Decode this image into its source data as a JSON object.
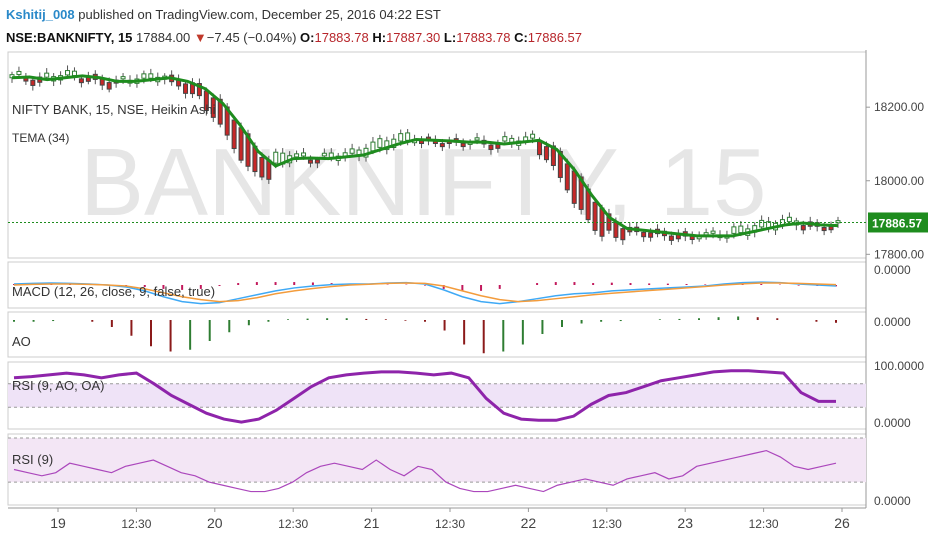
{
  "header": {
    "author": "Kshitij_008",
    "published_text": "published on TradingView.com, December 25, 2016 04:22 EST",
    "symbol": "NSE:BANKNIFTY, 15",
    "last_price": "17884.00",
    "change_arrow": "▼",
    "change": "−7.45 (−0.04%)",
    "open_label": "O:",
    "open": "17883.78",
    "high_label": "H:",
    "high": "17887.30",
    "low_label": "L:",
    "low": "17883.78",
    "close_label": "C:",
    "close": "17886.57"
  },
  "watermark": "BANKNIFTY, 15",
  "colors": {
    "up_candle": "#2e7d32",
    "down_candle": "#c62828",
    "tema": "#1e8c1e",
    "macd_line": "#3fa9f5",
    "signal_line": "#f39c3c",
    "hist_pos": "#c2185b",
    "ao_pos": "#2e7d32",
    "ao_neg": "#8b1a1a",
    "rsi_ao": "#8e24aa",
    "rsi": "#ab47bc",
    "price_tag": "#1e8c1e"
  },
  "chart_data": [
    {
      "type": "candlestick",
      "title": "NIFTY BANK, 15, NSE, Heikin Ashi",
      "indicator": "TEMA (34)",
      "y_ticks": [
        "18200.00",
        "18000.00",
        "17800.00"
      ],
      "last_value_label": "17886.57",
      "ylim": [
        17790,
        18350
      ],
      "tema": [
        18280,
        18282,
        18275,
        18280,
        18285,
        18280,
        18270,
        18270,
        18275,
        18280,
        18270,
        18250,
        18210,
        18150,
        18080,
        18040,
        18060,
        18062,
        18060,
        18065,
        18070,
        18085,
        18100,
        18112,
        18110,
        18108,
        18105,
        18105,
        18100,
        18105,
        18110,
        18085,
        18030,
        17960,
        17900,
        17870,
        17865,
        17860,
        17855,
        17850,
        17850,
        17850,
        17860,
        17870,
        17880,
        17885,
        17880,
        17878
      ]
    },
    {
      "type": "line",
      "title": "MACD (12, 26, close, 9, false, true)",
      "y_tick": "0.0000",
      "ylim": [
        -1,
        1
      ],
      "macd": [
        0.05,
        0.08,
        0.1,
        0.08,
        0.05,
        0.0,
        -0.1,
        -0.3,
        -0.6,
        -0.85,
        -0.95,
        -0.9,
        -0.7,
        -0.5,
        -0.3,
        -0.15,
        -0.05,
        0.02,
        0.05,
        0.05,
        0.1,
        0.12,
        0.05,
        -0.25,
        -0.6,
        -0.85,
        -0.95,
        -0.85,
        -0.7,
        -0.55,
        -0.45,
        -0.4,
        -0.3,
        -0.25,
        -0.2,
        -0.15,
        -0.1,
        -0.05,
        0.05,
        0.12,
        0.15,
        0.12,
        0.05,
        0.0,
        -0.05
      ],
      "signal": [
        0.0,
        0.03,
        0.05,
        0.05,
        0.03,
        0.0,
        -0.05,
        -0.2,
        -0.4,
        -0.6,
        -0.75,
        -0.85,
        -0.8,
        -0.65,
        -0.45,
        -0.3,
        -0.18,
        -0.08,
        0.0,
        0.04,
        0.08,
        0.1,
        0.08,
        -0.05,
        -0.3,
        -0.55,
        -0.75,
        -0.85,
        -0.8,
        -0.7,
        -0.6,
        -0.5,
        -0.42,
        -0.35,
        -0.28,
        -0.22,
        -0.15,
        -0.08,
        0.0,
        0.06,
        0.1,
        0.1,
        0.08,
        0.05,
        0.02
      ],
      "hist": [
        0.05,
        0.05,
        0.05,
        0.03,
        0.02,
        0.0,
        -0.05,
        -0.1,
        -0.2,
        -0.25,
        -0.2,
        -0.05,
        0.1,
        0.15,
        0.15,
        0.15,
        0.13,
        0.1,
        0.05,
        0.01,
        0.02,
        0.02,
        -0.03,
        -0.2,
        -0.3,
        -0.3,
        -0.2,
        0.0,
        0.1,
        0.15,
        0.15,
        0.1,
        0.12,
        0.1,
        0.08,
        0.07,
        0.05,
        0.03,
        0.05,
        0.06,
        0.05,
        0.02,
        -0.03,
        -0.05,
        -0.07
      ]
    },
    {
      "type": "bar",
      "title": "AO",
      "y_tick": "0.0000",
      "ylim": [
        -1,
        0.2
      ],
      "values": [
        -0.05,
        -0.05,
        -0.03,
        0.0,
        -0.05,
        -0.2,
        -0.45,
        -0.75,
        -0.9,
        -0.85,
        -0.6,
        -0.35,
        -0.15,
        -0.05,
        0.02,
        0.04,
        0.05,
        0.05,
        0.03,
        0.02,
        -0.02,
        -0.05,
        -0.3,
        -0.7,
        -0.95,
        -0.9,
        -0.7,
        -0.4,
        -0.2,
        -0.1,
        -0.05,
        -0.03,
        0.0,
        0.02,
        0.03,
        0.05,
        0.08,
        0.1,
        0.08,
        0.05,
        0.0,
        -0.05,
        -0.08
      ]
    },
    {
      "type": "line",
      "title": "RSI (9, AO, OA)",
      "y_ticks": [
        "100.0000",
        "0.0000"
      ],
      "ylim": [
        0,
        100
      ],
      "values": [
        80,
        82,
        85,
        88,
        85,
        80,
        85,
        88,
        70,
        50,
        35,
        20,
        10,
        5,
        10,
        25,
        45,
        65,
        80,
        85,
        88,
        90,
        90,
        88,
        85,
        88,
        80,
        45,
        20,
        10,
        8,
        8,
        15,
        35,
        50,
        55,
        65,
        75,
        80,
        85,
        90,
        92,
        92,
        90,
        88,
        55,
        40,
        40
      ]
    },
    {
      "type": "line",
      "title": "RSI (9)",
      "y_tick": "0.0000",
      "ylim": [
        0,
        100
      ],
      "values": [
        50,
        45,
        40,
        45,
        60,
        55,
        50,
        45,
        55,
        60,
        65,
        55,
        45,
        40,
        30,
        25,
        20,
        15,
        15,
        20,
        30,
        45,
        55,
        60,
        55,
        50,
        65,
        50,
        40,
        55,
        50,
        30,
        20,
        15,
        15,
        20,
        25,
        20,
        15,
        25,
        30,
        35,
        30,
        25,
        35,
        40,
        45,
        35,
        40,
        55,
        60,
        65,
        70,
        75,
        80,
        70,
        55,
        50,
        55,
        60
      ]
    }
  ],
  "x_axis": {
    "labels": [
      "19",
      "12:30",
      "20",
      "12:30",
      "21",
      "12:30",
      "22",
      "12:30",
      "23",
      "12:30",
      "26"
    ]
  }
}
